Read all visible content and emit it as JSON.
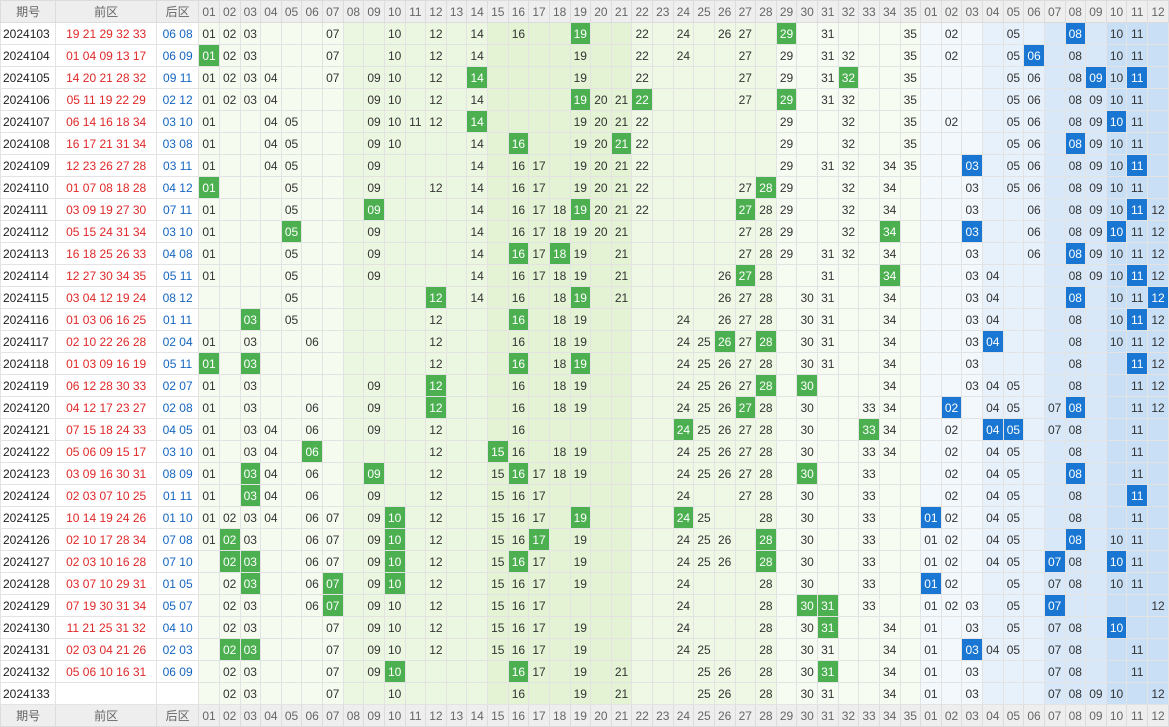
{
  "headers": {
    "period_label": "期号",
    "front_label": "前区",
    "back_label": "后区",
    "front_numbers": [
      "01",
      "02",
      "03",
      "04",
      "05",
      "06",
      "07",
      "08",
      "09",
      "10",
      "11",
      "12",
      "13",
      "14",
      "15",
      "16",
      "17",
      "18",
      "19",
      "20",
      "21",
      "22",
      "23",
      "24",
      "25",
      "26",
      "27",
      "28",
      "29",
      "30",
      "31",
      "32",
      "33",
      "34",
      "35"
    ],
    "back_numbers": [
      "01",
      "02",
      "03",
      "04",
      "05",
      "06",
      "07",
      "08",
      "09",
      "10",
      "11",
      "12"
    ]
  },
  "colors": {
    "front_hit": "#4caf50",
    "back_hit": "#1976d2",
    "front_text": "#e02828",
    "back_text": "#1565c0"
  },
  "rows": [
    {
      "period": "2024103",
      "front": "19 21 29 32 33",
      "back": "06 08",
      "fc": {
        "01": 0,
        "02": 0,
        "03": 0,
        "07": 0,
        "10": 0,
        "12": 0,
        "14": 0,
        "16": 0,
        "19": 1,
        "22": 0,
        "24": 0,
        "26": 0,
        "27": 0,
        "29": 1,
        "31": 0,
        "35": 0
      },
      "bc": {
        "02": 0,
        "05": 0,
        "08": 1,
        "10": 0,
        "11": 0
      }
    },
    {
      "period": "2024104",
      "front": "01 04 09 13 17",
      "back": "06 09",
      "fc": {
        "01": 1,
        "02": 0,
        "03": 0,
        "07": 0,
        "10": 0,
        "12": 0,
        "14": 0,
        "19": 0,
        "22": 0,
        "24": 0,
        "27": 0,
        "29": 0,
        "31": 0,
        "32": 0,
        "35": 0
      },
      "bc": {
        "02": 0,
        "05": 0,
        "06": 1,
        "08": 0,
        "10": 0,
        "11": 0
      }
    },
    {
      "period": "2024105",
      "front": "14 20 21 28 32",
      "back": "09 11",
      "fc": {
        "01": 0,
        "02": 0,
        "03": 0,
        "04": 0,
        "07": 0,
        "09": 0,
        "10": 0,
        "12": 0,
        "14": 1,
        "19": 0,
        "22": 0,
        "27": 0,
        "29": 0,
        "31": 0,
        "32": 1,
        "35": 0
      },
      "bc": {
        "05": 0,
        "06": 0,
        "08": 0,
        "09": 1,
        "10": 0,
        "11": 1
      }
    },
    {
      "period": "2024106",
      "front": "05 11 19 22 29",
      "back": "02 12",
      "fc": {
        "01": 0,
        "02": 0,
        "03": 0,
        "04": 0,
        "09": 0,
        "10": 0,
        "12": 0,
        "14": 0,
        "19": 1,
        "20": 0,
        "21": 0,
        "22": 1,
        "27": 0,
        "29": 1,
        "31": 0,
        "32": 0,
        "35": 0
      },
      "bc": {
        "05": 0,
        "06": 0,
        "08": 0,
        "09": 0,
        "10": 0,
        "11": 0
      }
    },
    {
      "period": "2024107",
      "front": "06 14 16 18 34",
      "back": "03 10",
      "fc": {
        "01": 0,
        "04": 0,
        "05": 0,
        "09": 0,
        "10": 0,
        "11": 0,
        "12": 0,
        "14": 1,
        "19": 0,
        "20": 0,
        "21": 0,
        "22": 0,
        "29": 0,
        "32": 0,
        "35": 0
      },
      "bc": {
        "02": 0,
        "05": 0,
        "06": 0,
        "08": 0,
        "09": 0,
        "10": 1,
        "11": 0
      }
    },
    {
      "period": "2024108",
      "front": "16 17 21 31 34",
      "back": "03 08",
      "fc": {
        "01": 0,
        "04": 0,
        "05": 0,
        "09": 0,
        "10": 0,
        "14": 0,
        "16": 1,
        "19": 0,
        "20": 0,
        "21": 1,
        "22": 0,
        "29": 0,
        "32": 0,
        "35": 0
      },
      "bc": {
        "05": 0,
        "06": 0,
        "08": 1,
        "09": 0,
        "10": 0,
        "11": 0
      }
    },
    {
      "period": "2024109",
      "front": "12 23 26 27 28",
      "back": "03 11",
      "fc": {
        "01": 0,
        "04": 0,
        "05": 0,
        "09": 0,
        "14": 0,
        "16": 0,
        "17": 0,
        "19": 0,
        "20": 0,
        "21": 0,
        "22": 0,
        "29": 0,
        "31": 0,
        "32": 0,
        "34": 0,
        "35": 0
      },
      "bc": {
        "03": 1,
        "05": 0,
        "06": 0,
        "08": 0,
        "09": 0,
        "10": 0,
        "11": 1
      }
    },
    {
      "period": "2024110",
      "front": "01 07 08 18 28",
      "back": "04 12",
      "fc": {
        "01": 1,
        "05": 0,
        "09": 0,
        "12": 0,
        "14": 0,
        "16": 0,
        "17": 0,
        "19": 0,
        "20": 0,
        "21": 0,
        "22": 0,
        "27": 0,
        "28": 1,
        "29": 0,
        "32": 0,
        "34": 0
      },
      "bc": {
        "03": 0,
        "05": 0,
        "06": 0,
        "08": 0,
        "09": 0,
        "10": 0,
        "11": 0
      }
    },
    {
      "period": "2024111",
      "front": "03 09 19 27 30",
      "back": "07 11",
      "fc": {
        "01": 0,
        "05": 0,
        "09": 1,
        "14": 0,
        "16": 0,
        "17": 0,
        "18": 0,
        "19": 1,
        "20": 0,
        "21": 0,
        "22": 0,
        "27": 1,
        "28": 0,
        "29": 0,
        "32": 0,
        "34": 0
      },
      "bc": {
        "03": 0,
        "06": 0,
        "08": 0,
        "09": 0,
        "10": 0,
        "11": 1,
        "12": 0
      }
    },
    {
      "period": "2024112",
      "front": "05 15 24 31 34",
      "back": "03 10",
      "fc": {
        "01": 0,
        "05": 1,
        "09": 0,
        "14": 0,
        "16": 0,
        "17": 0,
        "18": 0,
        "19": 0,
        "20": 0,
        "21": 0,
        "27": 0,
        "28": 0,
        "29": 0,
        "32": 0,
        "34": 1
      },
      "bc": {
        "03": 1,
        "06": 0,
        "08": 0,
        "09": 0,
        "10": 1,
        "11": 0,
        "12": 0
      }
    },
    {
      "period": "2024113",
      "front": "16 18 25 26 33",
      "back": "04 08",
      "fc": {
        "01": 0,
        "05": 0,
        "09": 0,
        "14": 0,
        "16": 1,
        "17": 0,
        "18": 1,
        "19": 0,
        "21": 0,
        "27": 0,
        "28": 0,
        "29": 0,
        "31": 0,
        "32": 0,
        "34": 0
      },
      "bc": {
        "03": 0,
        "06": 0,
        "08": 1,
        "09": 0,
        "10": 0,
        "11": 0,
        "12": 0
      }
    },
    {
      "period": "2024114",
      "front": "12 27 30 34 35",
      "back": "05 11",
      "fc": {
        "01": 0,
        "05": 0,
        "09": 0,
        "14": 0,
        "16": 0,
        "17": 0,
        "18": 0,
        "19": 0,
        "21": 0,
        "26": 0,
        "27": 1,
        "28": 0,
        "31": 0,
        "34": 1
      },
      "bc": {
        "03": 0,
        "04": 0,
        "08": 0,
        "09": 0,
        "10": 0,
        "11": 1,
        "12": 0
      }
    },
    {
      "period": "2024115",
      "front": "03 04 12 19 24",
      "back": "08 12",
      "fc": {
        "05": 0,
        "12": 1,
        "14": 0,
        "16": 0,
        "18": 0,
        "19": 1,
        "21": 0,
        "26": 0,
        "27": 0,
        "28": 0,
        "30": 0,
        "31": 0,
        "34": 0
      },
      "bc": {
        "03": 0,
        "04": 0,
        "08": 1,
        "10": 0,
        "11": 0,
        "12": 1
      }
    },
    {
      "period": "2024116",
      "front": "01 03 06 16 25",
      "back": "01 11",
      "fc": {
        "03": 1,
        "05": 0,
        "12": 0,
        "16": 1,
        "18": 0,
        "19": 0,
        "24": 0,
        "26": 0,
        "27": 0,
        "28": 0,
        "30": 0,
        "31": 0,
        "34": 0
      },
      "bc": {
        "03": 0,
        "04": 0,
        "08": 0,
        "10": 0,
        "11": 1,
        "12": 0
      }
    },
    {
      "period": "2024117",
      "front": "02 10 22 26 28",
      "back": "02 04",
      "fc": {
        "01": 0,
        "03": 0,
        "06": 0,
        "12": 0,
        "16": 0,
        "18": 0,
        "19": 0,
        "24": 0,
        "25": 0,
        "26": 1,
        "27": 0,
        "28": 1,
        "30": 0,
        "31": 0,
        "34": 0
      },
      "bc": {
        "03": 0,
        "04": 1,
        "08": 0,
        "10": 0,
        "11": 0,
        "12": 0
      }
    },
    {
      "period": "2024118",
      "front": "01 03 09 16 19",
      "back": "05 11",
      "fc": {
        "01": 1,
        "03": 1,
        "12": 0,
        "16": 1,
        "18": 0,
        "19": 1,
        "24": 0,
        "25": 0,
        "26": 0,
        "27": 0,
        "28": 0,
        "30": 0,
        "31": 0,
        "34": 0
      },
      "bc": {
        "03": 0,
        "08": 0,
        "11": 1,
        "12": 0
      }
    },
    {
      "period": "2024119",
      "front": "06 12 28 30 33",
      "back": "02 07",
      "fc": {
        "01": 0,
        "03": 0,
        "09": 0,
        "12": 1,
        "16": 0,
        "18": 0,
        "19": 0,
        "24": 0,
        "25": 0,
        "26": 0,
        "27": 0,
        "28": 1,
        "30": 1,
        "34": 0
      },
      "bc": {
        "03": 0,
        "04": 0,
        "05": 0,
        "08": 0,
        "11": 0,
        "12": 0
      }
    },
    {
      "period": "2024120",
      "front": "04 12 17 23 27",
      "back": "02 08",
      "fc": {
        "01": 0,
        "03": 0,
        "06": 0,
        "09": 0,
        "12": 1,
        "16": 0,
        "18": 0,
        "19": 0,
        "24": 0,
        "25": 0,
        "26": 0,
        "27": 1,
        "28": 0,
        "30": 0,
        "33": 0,
        "34": 0
      },
      "bc": {
        "02": 1,
        "04": 0,
        "05": 0,
        "07": 0,
        "08": 1,
        "11": 0,
        "12": 0
      }
    },
    {
      "period": "2024121",
      "front": "07 15 18 24 33",
      "back": "04 05",
      "fc": {
        "01": 0,
        "03": 0,
        "04": 0,
        "06": 0,
        "09": 0,
        "12": 0,
        "16": 0,
        "24": 1,
        "25": 0,
        "26": 0,
        "27": 0,
        "28": 0,
        "30": 0,
        "33": 1,
        "34": 0
      },
      "bc": {
        "02": 0,
        "04": 1,
        "05": 1,
        "07": 0,
        "08": 0,
        "11": 0
      }
    },
    {
      "period": "2024122",
      "front": "05 06 09 15 17",
      "back": "03 10",
      "fc": {
        "01": 0,
        "03": 0,
        "04": 0,
        "06": 1,
        "12": 0,
        "15": 1,
        "16": 0,
        "18": 0,
        "19": 0,
        "24": 0,
        "25": 0,
        "26": 0,
        "27": 0,
        "28": 0,
        "30": 0,
        "33": 0,
        "34": 0
      },
      "bc": {
        "02": 0,
        "04": 0,
        "05": 0,
        "08": 0,
        "11": 0
      }
    },
    {
      "period": "2024123",
      "front": "03 09 16 30 31",
      "back": "08 09",
      "fc": {
        "01": 0,
        "03": 1,
        "04": 0,
        "06": 0,
        "09": 1,
        "12": 0,
        "15": 0,
        "16": 1,
        "17": 0,
        "18": 0,
        "19": 0,
        "24": 0,
        "25": 0,
        "26": 0,
        "27": 0,
        "28": 0,
        "30": 1,
        "33": 0
      },
      "bc": {
        "02": 0,
        "04": 0,
        "05": 0,
        "08": 1,
        "11": 0
      }
    },
    {
      "period": "2024124",
      "front": "02 03 07 10 25",
      "back": "01 11",
      "fc": {
        "01": 0,
        "03": 1,
        "04": 0,
        "06": 0,
        "09": 0,
        "12": 0,
        "15": 0,
        "16": 0,
        "17": 0,
        "24": 0,
        "27": 0,
        "28": 0,
        "30": 0,
        "33": 0
      },
      "bc": {
        "02": 0,
        "04": 0,
        "05": 0,
        "08": 0,
        "11": 1
      }
    },
    {
      "period": "2024125",
      "front": "10 14 19 24 26",
      "back": "01 10",
      "fc": {
        "01": 0,
        "02": 0,
        "03": 0,
        "04": 0,
        "06": 0,
        "07": 0,
        "09": 0,
        "10": 1,
        "12": 0,
        "15": 0,
        "16": 0,
        "17": 0,
        "19": 1,
        "24": 1,
        "25": 0,
        "28": 0,
        "30": 0,
        "33": 0
      },
      "bc": {
        "01": 1,
        "02": 0,
        "04": 0,
        "05": 0,
        "08": 0,
        "11": 0
      }
    },
    {
      "period": "2024126",
      "front": "02 10 17 28 34",
      "back": "07 08",
      "fc": {
        "01": 0,
        "02": 1,
        "03": 0,
        "06": 0,
        "07": 0,
        "09": 0,
        "10": 1,
        "12": 0,
        "15": 0,
        "16": 0,
        "17": 1,
        "19": 0,
        "24": 0,
        "25": 0,
        "26": 0,
        "28": 1,
        "30": 0,
        "33": 0
      },
      "bc": {
        "01": 0,
        "02": 0,
        "04": 0,
        "05": 0,
        "08": 1,
        "10": 0,
        "11": 0
      }
    },
    {
      "period": "2024127",
      "front": "02 03 10 16 28",
      "back": "07 10",
      "fc": {
        "02": 1,
        "03": 1,
        "06": 0,
        "07": 0,
        "09": 0,
        "10": 1,
        "12": 0,
        "15": 0,
        "16": 1,
        "17": 0,
        "19": 0,
        "24": 0,
        "25": 0,
        "26": 0,
        "28": 1,
        "30": 0,
        "33": 0
      },
      "bc": {
        "01": 0,
        "02": 0,
        "04": 0,
        "05": 0,
        "07": 1,
        "08": 0,
        "10": 1,
        "11": 0
      }
    },
    {
      "period": "2024128",
      "front": "03 07 10 29 31",
      "back": "01 05",
      "fc": {
        "02": 0,
        "03": 1,
        "06": 0,
        "07": 1,
        "09": 0,
        "10": 1,
        "12": 0,
        "15": 0,
        "16": 0,
        "17": 0,
        "19": 0,
        "24": 0,
        "28": 0,
        "30": 0,
        "33": 0
      },
      "bc": {
        "01": 1,
        "02": 0,
        "05": 0,
        "07": 0,
        "08": 0,
        "10": 0,
        "11": 0
      }
    },
    {
      "period": "2024129",
      "front": "07 19 30 31 34",
      "back": "05 07",
      "fc": {
        "02": 0,
        "03": 0,
        "06": 0,
        "07": 1,
        "09": 0,
        "10": 0,
        "12": 0,
        "15": 0,
        "16": 0,
        "17": 0,
        "24": 0,
        "28": 0,
        "30": 1,
        "31": 1,
        "33": 0
      },
      "bc": {
        "01": 0,
        "02": 0,
        "03": 0,
        "05": 0,
        "07": 1,
        "12": 0
      }
    },
    {
      "period": "2024130",
      "front": "11 21 25 31 32",
      "back": "04 10",
      "fc": {
        "02": 0,
        "03": 0,
        "07": 0,
        "09": 0,
        "10": 0,
        "12": 0,
        "15": 0,
        "16": 0,
        "17": 0,
        "19": 0,
        "24": 0,
        "28": 0,
        "30": 0,
        "31": 1,
        "34": 0
      },
      "bc": {
        "01": 0,
        "03": 0,
        "05": 0,
        "07": 0,
        "08": 0,
        "10": 1
      }
    },
    {
      "period": "2024131",
      "front": "02 03 04 21 26",
      "back": "02 03",
      "fc": {
        "02": 1,
        "03": 1,
        "07": 0,
        "09": 0,
        "10": 0,
        "12": 0,
        "15": 0,
        "16": 0,
        "17": 0,
        "19": 0,
        "24": 0,
        "25": 0,
        "28": 0,
        "30": 0,
        "31": 0,
        "34": 0
      },
      "bc": {
        "01": 0,
        "03": 1,
        "04": 0,
        "05": 0,
        "07": 0,
        "08": 0,
        "11": 0
      }
    },
    {
      "period": "2024132",
      "front": "05 06 10 16 31",
      "back": "06 09",
      "fc": {
        "02": 0,
        "03": 0,
        "07": 0,
        "09": 0,
        "10": 1,
        "16": 1,
        "17": 0,
        "19": 0,
        "21": 0,
        "25": 0,
        "26": 0,
        "28": 0,
        "30": 0,
        "31": 1,
        "34": 0
      },
      "bc": {
        "01": 0,
        "03": 0,
        "07": 0,
        "08": 0,
        "11": 0
      }
    },
    {
      "period": "2024133",
      "front": "",
      "back": "",
      "fc": {
        "02": 0,
        "03": 0,
        "07": 0,
        "10": 0,
        "16": 0,
        "19": 0,
        "21": 0,
        "25": 0,
        "26": 0,
        "28": 0,
        "30": 0,
        "31": 0,
        "34": 0
      },
      "bc": {
        "01": 0,
        "03": 0,
        "07": 0,
        "08": 0,
        "09": 0,
        "10": 0,
        "12": 0
      }
    }
  ]
}
